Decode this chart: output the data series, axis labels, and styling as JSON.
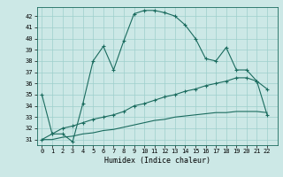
{
  "xlabel": "Humidex (Indice chaleur)",
  "bg_color": "#cce8e6",
  "grid_color": "#9ecfcc",
  "line_color": "#1a6b5e",
  "xlim": [
    -0.5,
    23
  ],
  "ylim": [
    30.5,
    42.8
  ],
  "xticks": [
    0,
    1,
    2,
    3,
    4,
    5,
    6,
    7,
    8,
    9,
    10,
    11,
    12,
    13,
    14,
    15,
    16,
    17,
    18,
    19,
    20,
    21,
    22
  ],
  "yticks": [
    31,
    32,
    33,
    34,
    35,
    36,
    37,
    38,
    39,
    40,
    41,
    42
  ],
  "series1_x": [
    0,
    1,
    2,
    3,
    4,
    5,
    6,
    7,
    8,
    9,
    10,
    11,
    12,
    13,
    14,
    15,
    16,
    17,
    18,
    19,
    20,
    21,
    22
  ],
  "series1_y": [
    35.0,
    31.5,
    31.5,
    30.8,
    34.2,
    38.0,
    39.3,
    37.2,
    39.8,
    42.2,
    42.5,
    42.5,
    42.3,
    42.0,
    41.2,
    40.0,
    38.2,
    38.0,
    39.2,
    37.2,
    37.2,
    36.2,
    35.5
  ],
  "series2_x": [
    0,
    1,
    2,
    3,
    4,
    5,
    6,
    7,
    8,
    9,
    10,
    11,
    12,
    13,
    14,
    15,
    16,
    17,
    18,
    19,
    20,
    21,
    22
  ],
  "series2_y": [
    31.0,
    31.5,
    32.0,
    32.2,
    32.5,
    32.8,
    33.0,
    33.2,
    33.5,
    34.0,
    34.2,
    34.5,
    34.8,
    35.0,
    35.3,
    35.5,
    35.8,
    36.0,
    36.2,
    36.5,
    36.5,
    36.2,
    33.2
  ],
  "series3_x": [
    0,
    1,
    2,
    3,
    4,
    5,
    6,
    7,
    8,
    9,
    10,
    11,
    12,
    13,
    14,
    15,
    16,
    17,
    18,
    19,
    20,
    21,
    22
  ],
  "series3_y": [
    31.0,
    31.0,
    31.2,
    31.3,
    31.5,
    31.6,
    31.8,
    31.9,
    32.1,
    32.3,
    32.5,
    32.7,
    32.8,
    33.0,
    33.1,
    33.2,
    33.3,
    33.4,
    33.4,
    33.5,
    33.5,
    33.5,
    33.4
  ]
}
